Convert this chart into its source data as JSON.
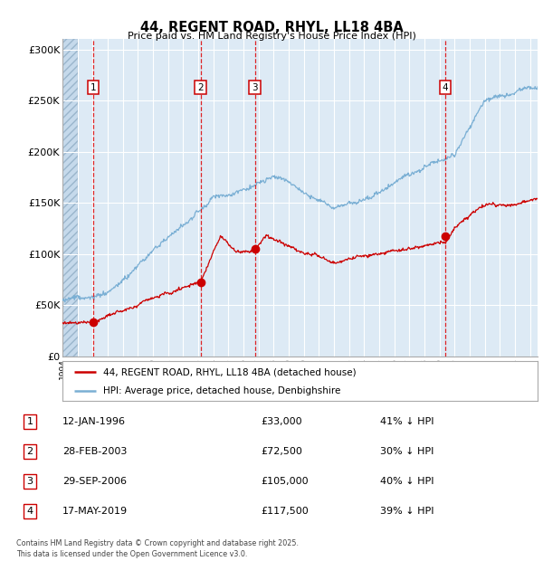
{
  "title": "44, REGENT ROAD, RHYL, LL18 4BA",
  "subtitle": "Price paid vs. HM Land Registry's House Price Index (HPI)",
  "ylabel_ticks": [
    "£0",
    "£50K",
    "£100K",
    "£150K",
    "£200K",
    "£250K",
    "£300K"
  ],
  "ytick_values": [
    0,
    50000,
    100000,
    150000,
    200000,
    250000,
    300000
  ],
  "ylim": [
    0,
    310000
  ],
  "xlim_start": 1994.0,
  "xlim_end": 2025.5,
  "background_color": "#ddeaf5",
  "grid_color": "#ffffff",
  "red_line_color": "#cc0000",
  "blue_line_color": "#7aafd4",
  "legend_label_red": "44, REGENT ROAD, RHYL, LL18 4BA (detached house)",
  "legend_label_blue": "HPI: Average price, detached house, Denbighshire",
  "transactions": [
    {
      "num": 1,
      "date": "12-JAN-1996",
      "price": 33000,
      "year": 1996.04,
      "pct": "41%",
      "dir": "↓"
    },
    {
      "num": 2,
      "date": "28-FEB-2003",
      "price": 72500,
      "year": 2003.16,
      "pct": "30%",
      "dir": "↓"
    },
    {
      "num": 3,
      "date": "29-SEP-2006",
      "price": 105000,
      "year": 2006.75,
      "pct": "40%",
      "dir": "↓"
    },
    {
      "num": 4,
      "date": "17-MAY-2019",
      "price": 117500,
      "year": 2019.38,
      "pct": "39%",
      "dir": "↓"
    }
  ],
  "footer": "Contains HM Land Registry data © Crown copyright and database right 2025.\nThis data is licensed under the Open Government Licence v3.0."
}
